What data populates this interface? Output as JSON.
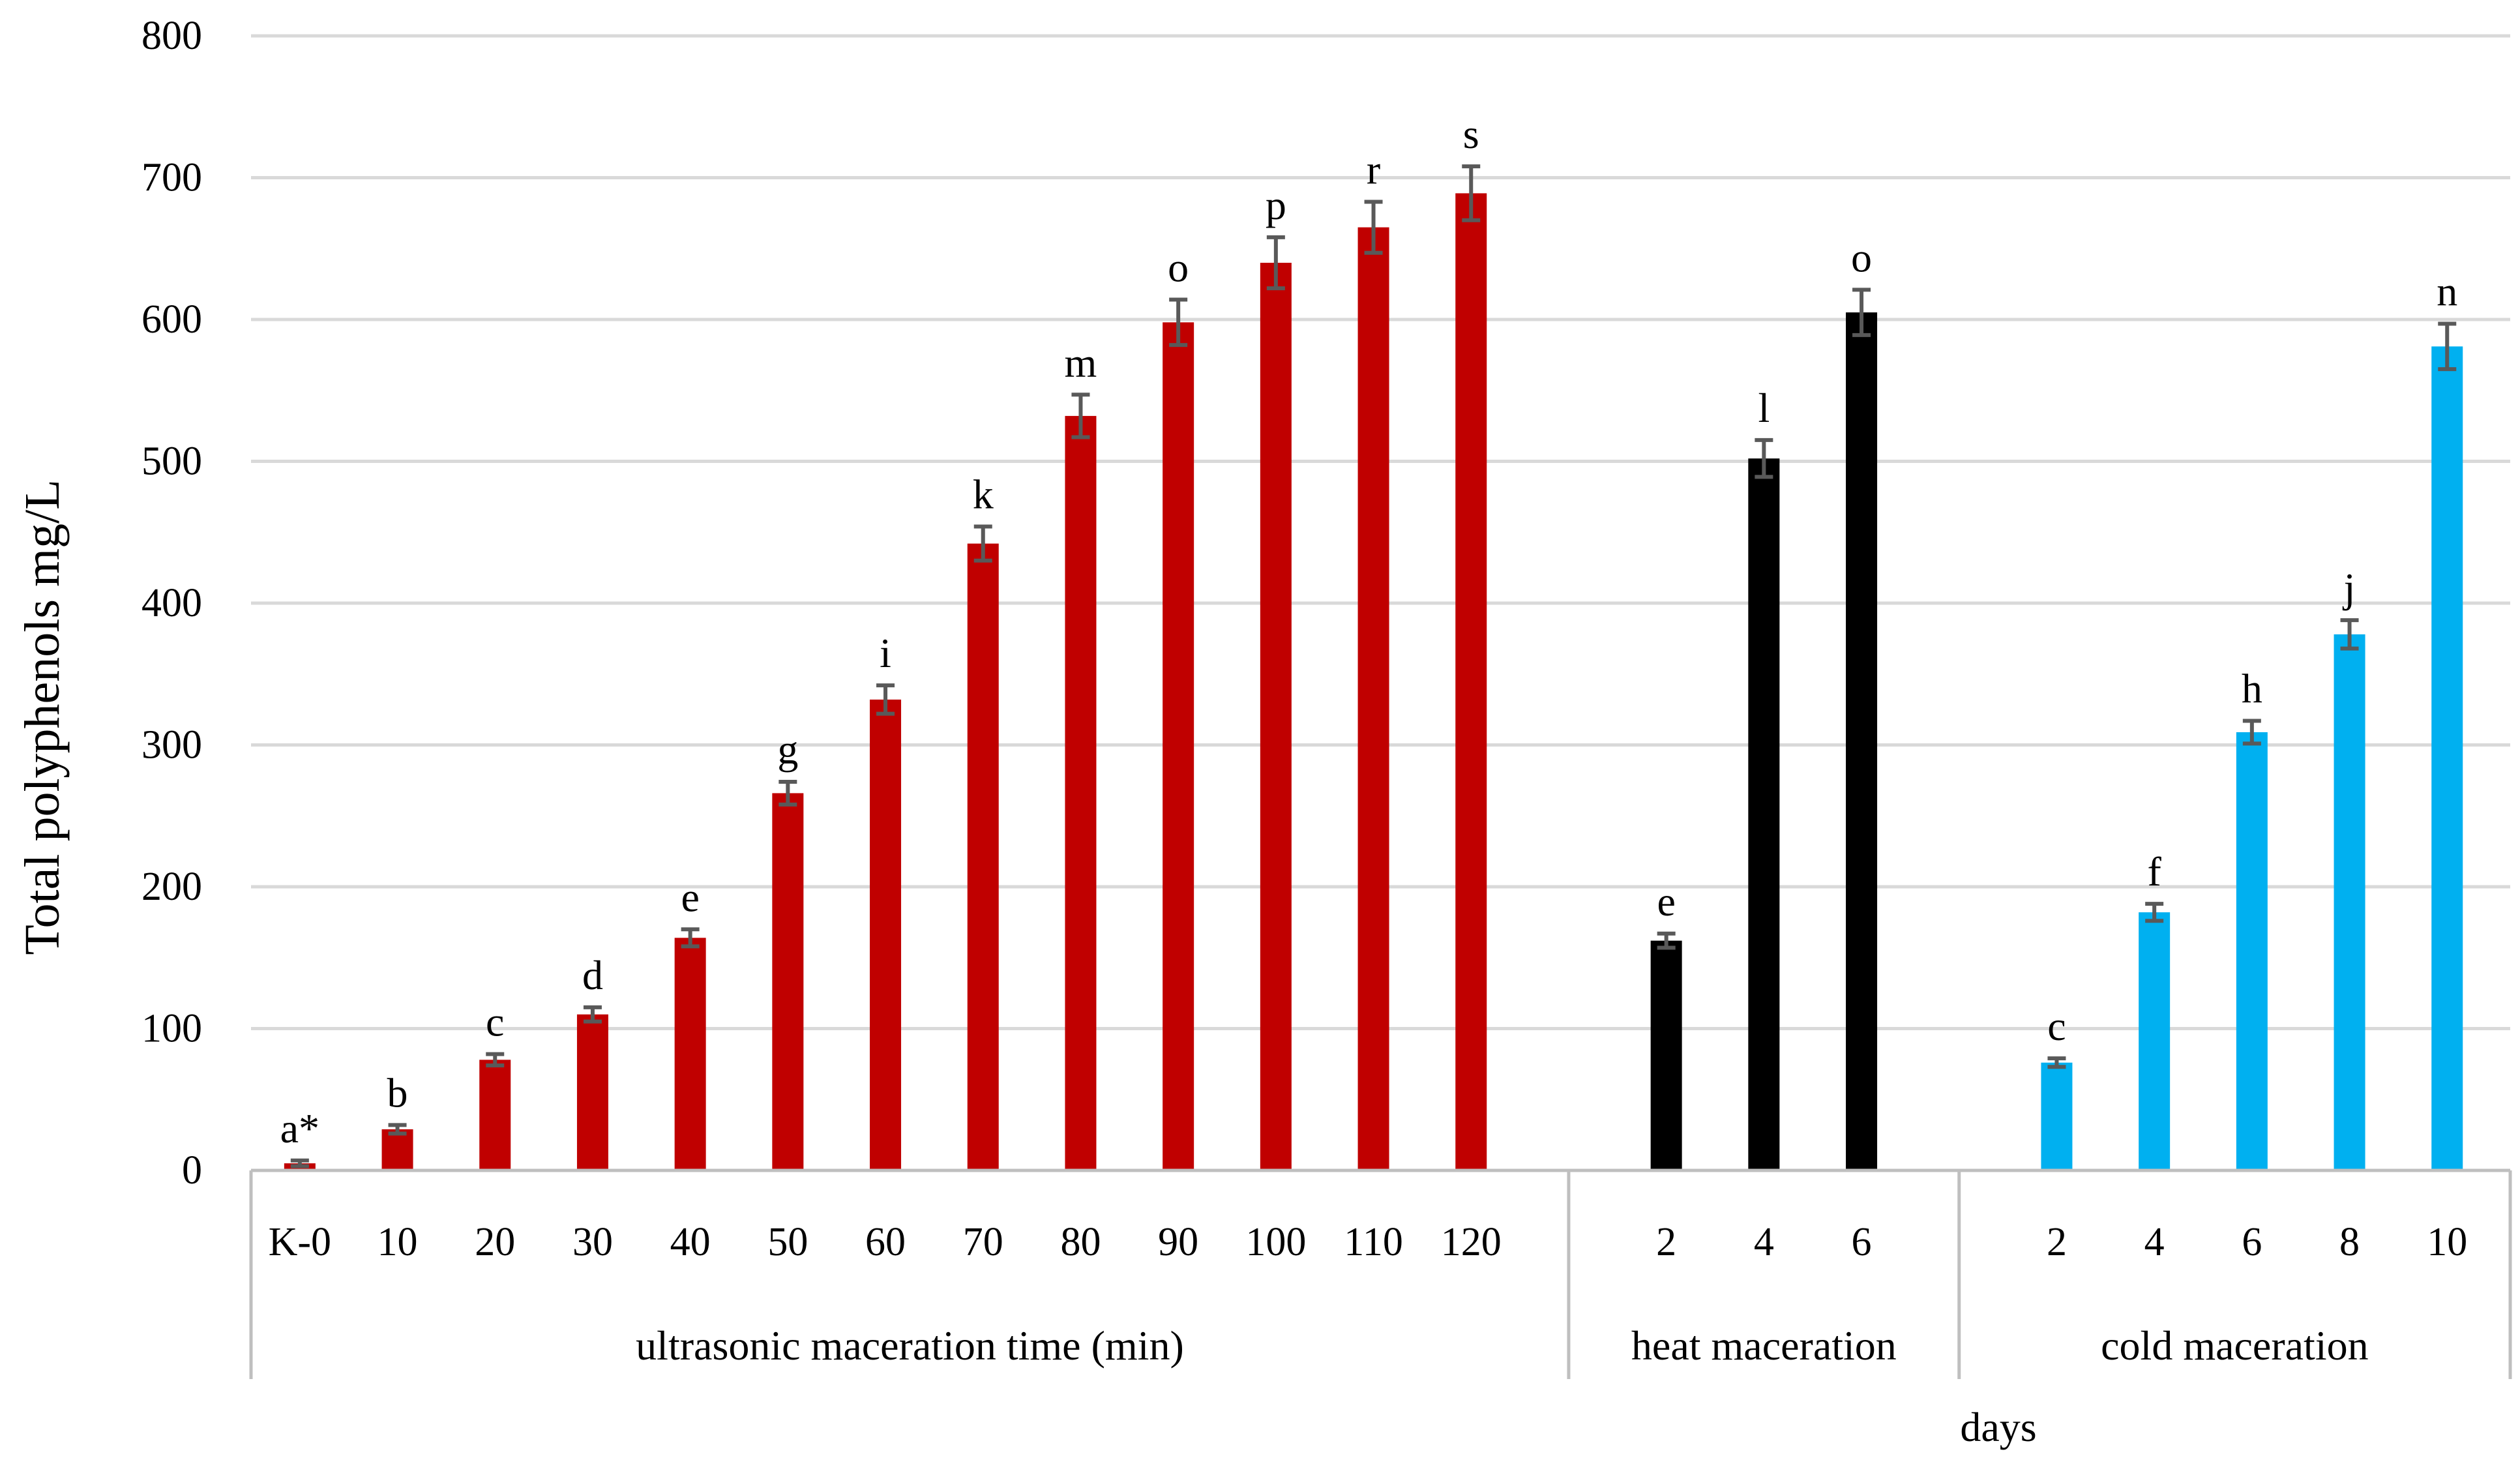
{
  "chart_data": {
    "type": "bar",
    "title": "",
    "ylabel": "Total polyphenols mg/L",
    "xlabel": "days",
    "ylim": [
      0,
      800
    ],
    "yticks": [
      0,
      100,
      200,
      300,
      400,
      500,
      600,
      700,
      800
    ],
    "grid": true,
    "groups": [
      {
        "name": "ultrasonic maceration time (min)",
        "color": "#c00000",
        "categories": [
          "K-0",
          "10",
          "20",
          "30",
          "40",
          "50",
          "60",
          "70",
          "80",
          "90",
          "100",
          "110",
          "120"
        ],
        "values": [
          5,
          29,
          78,
          110,
          164,
          266,
          332,
          442,
          532,
          598,
          640,
          665,
          689
        ],
        "errors": [
          2,
          3,
          4,
          5,
          6,
          8,
          10,
          12,
          15,
          16,
          18,
          18,
          19
        ],
        "letters": [
          "a*",
          "b",
          "c",
          "d",
          "e",
          "g",
          "i",
          "k",
          "m",
          "o",
          "p",
          "r",
          "s"
        ]
      },
      {
        "name": "heat maceration",
        "color": "#000000",
        "categories": [
          "2",
          "4",
          "6"
        ],
        "values": [
          162,
          502,
          605
        ],
        "errors": [
          5,
          13,
          16
        ],
        "letters": [
          "e",
          "l",
          "o"
        ]
      },
      {
        "name": "cold maceration",
        "color": "#00b0f0",
        "categories": [
          "2",
          "4",
          "6",
          "8",
          "10"
        ],
        "values": [
          76,
          182,
          309,
          378,
          581
        ],
        "errors": [
          3,
          6,
          8,
          10,
          16
        ],
        "letters": [
          "c",
          "f",
          "h",
          "j",
          "n"
        ]
      }
    ]
  }
}
